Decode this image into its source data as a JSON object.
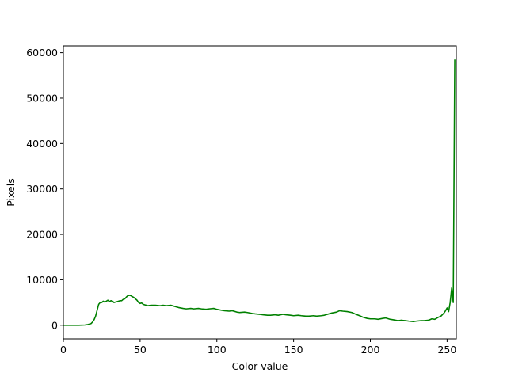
{
  "chart_data": {
    "type": "line",
    "title": "",
    "xlabel": "Color value",
    "ylabel": "Pixels",
    "xlim": [
      0,
      256
    ],
    "ylim": [
      -3000,
      61500
    ],
    "xticks": [
      0,
      50,
      100,
      150,
      200,
      250
    ],
    "yticks": [
      0,
      10000,
      20000,
      30000,
      40000,
      50000,
      60000
    ],
    "grid": false,
    "legend": "none",
    "series": [
      {
        "color": "#008000",
        "points": [
          [
            0,
            0
          ],
          [
            5,
            0
          ],
          [
            10,
            0
          ],
          [
            14,
            50
          ],
          [
            16,
            150
          ],
          [
            18,
            350
          ],
          [
            19,
            700
          ],
          [
            20,
            1200
          ],
          [
            21,
            2000
          ],
          [
            22,
            3300
          ],
          [
            23,
            4600
          ],
          [
            24,
            5000
          ],
          [
            25,
            5000
          ],
          [
            26,
            5300
          ],
          [
            27,
            5100
          ],
          [
            28,
            5300
          ],
          [
            29,
            5500
          ],
          [
            30,
            5200
          ],
          [
            31,
            5400
          ],
          [
            32,
            5300
          ],
          [
            33,
            5000
          ],
          [
            34,
            5100
          ],
          [
            35,
            5200
          ],
          [
            36,
            5300
          ],
          [
            37,
            5400
          ],
          [
            38,
            5400
          ],
          [
            39,
            5700
          ],
          [
            40,
            5800
          ],
          [
            41,
            6200
          ],
          [
            42,
            6500
          ],
          [
            43,
            6600
          ],
          [
            44,
            6500
          ],
          [
            45,
            6300
          ],
          [
            46,
            6100
          ],
          [
            47,
            5800
          ],
          [
            48,
            5500
          ],
          [
            49,
            5000
          ],
          [
            50,
            4800
          ],
          [
            51,
            4900
          ],
          [
            52,
            4600
          ],
          [
            53,
            4500
          ],
          [
            54,
            4400
          ],
          [
            55,
            4300
          ],
          [
            57,
            4400
          ],
          [
            60,
            4400
          ],
          [
            63,
            4300
          ],
          [
            65,
            4400
          ],
          [
            67,
            4300
          ],
          [
            70,
            4400
          ],
          [
            72,
            4200
          ],
          [
            75,
            3900
          ],
          [
            78,
            3700
          ],
          [
            80,
            3600
          ],
          [
            83,
            3700
          ],
          [
            85,
            3600
          ],
          [
            88,
            3700
          ],
          [
            90,
            3600
          ],
          [
            93,
            3500
          ],
          [
            95,
            3600
          ],
          [
            98,
            3700
          ],
          [
            100,
            3500
          ],
          [
            103,
            3300
          ],
          [
            105,
            3200
          ],
          [
            108,
            3100
          ],
          [
            110,
            3200
          ],
          [
            113,
            2900
          ],
          [
            115,
            2800
          ],
          [
            118,
            2900
          ],
          [
            120,
            2800
          ],
          [
            123,
            2600
          ],
          [
            125,
            2500
          ],
          [
            128,
            2400
          ],
          [
            130,
            2300
          ],
          [
            133,
            2200
          ],
          [
            135,
            2200
          ],
          [
            138,
            2300
          ],
          [
            140,
            2200
          ],
          [
            143,
            2400
          ],
          [
            145,
            2300
          ],
          [
            148,
            2200
          ],
          [
            150,
            2100
          ],
          [
            153,
            2200
          ],
          [
            155,
            2100
          ],
          [
            158,
            2000
          ],
          [
            160,
            2000
          ],
          [
            163,
            2100
          ],
          [
            165,
            2000
          ],
          [
            168,
            2100
          ],
          [
            170,
            2200
          ],
          [
            173,
            2500
          ],
          [
            175,
            2700
          ],
          [
            178,
            2900
          ],
          [
            180,
            3200
          ],
          [
            182,
            3100
          ],
          [
            185,
            3000
          ],
          [
            188,
            2800
          ],
          [
            190,
            2500
          ],
          [
            193,
            2100
          ],
          [
            195,
            1800
          ],
          [
            198,
            1500
          ],
          [
            200,
            1400
          ],
          [
            203,
            1400
          ],
          [
            205,
            1300
          ],
          [
            208,
            1500
          ],
          [
            210,
            1600
          ],
          [
            213,
            1300
          ],
          [
            215,
            1200
          ],
          [
            218,
            1000
          ],
          [
            220,
            1100
          ],
          [
            223,
            1000
          ],
          [
            225,
            900
          ],
          [
            228,
            800
          ],
          [
            230,
            900
          ],
          [
            233,
            1000
          ],
          [
            235,
            1000
          ],
          [
            238,
            1100
          ],
          [
            240,
            1400
          ],
          [
            242,
            1300
          ],
          [
            244,
            1700
          ],
          [
            246,
            2000
          ],
          [
            248,
            2700
          ],
          [
            249,
            3200
          ],
          [
            250,
            3800
          ],
          [
            251,
            3000
          ],
          [
            252,
            5000
          ],
          [
            253,
            8200
          ],
          [
            254,
            5000
          ],
          [
            255,
            58500
          ]
        ]
      }
    ]
  }
}
